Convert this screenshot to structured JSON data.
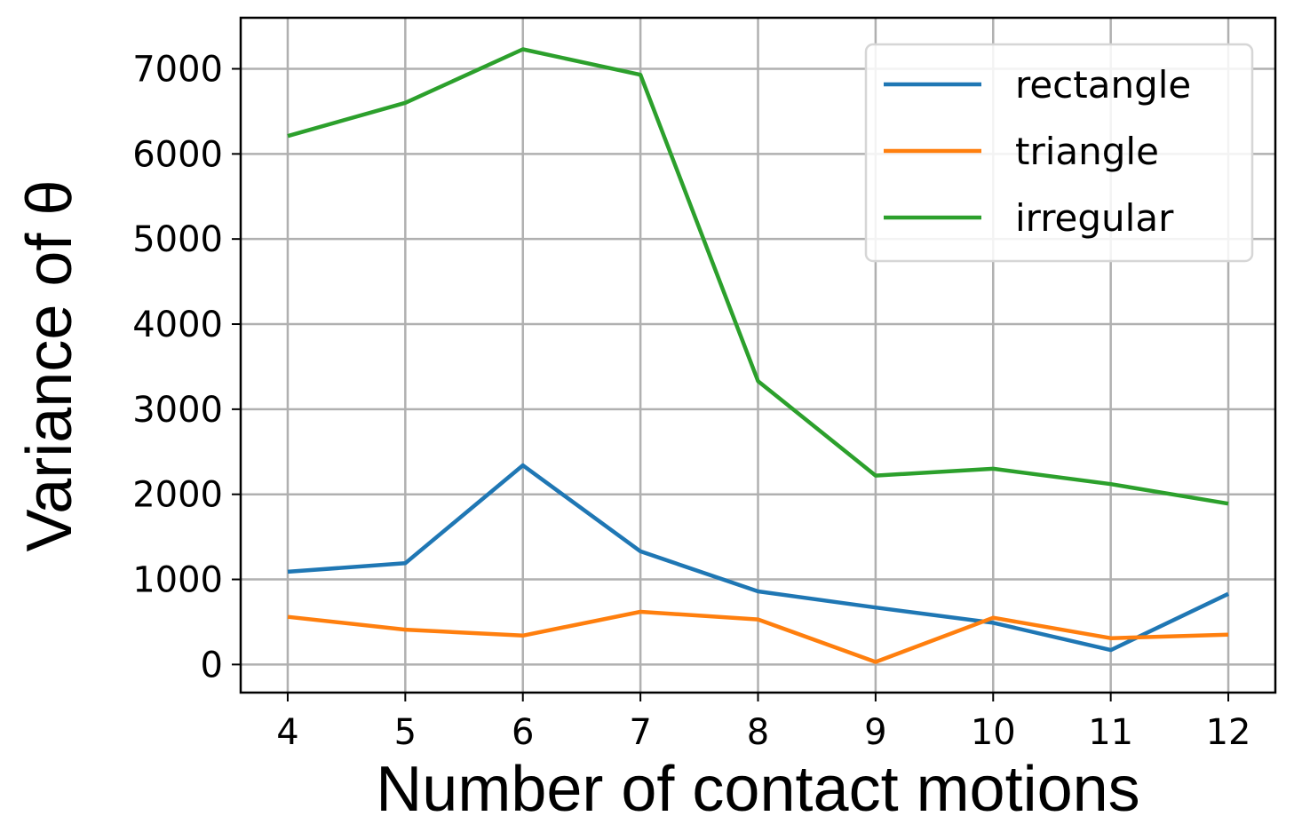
{
  "chart_data": {
    "type": "line",
    "x": [
      4,
      5,
      6,
      7,
      8,
      9,
      10,
      11,
      12
    ],
    "xticks": [
      "4",
      "5",
      "6",
      "7",
      "8",
      "9",
      "10",
      "11",
      "12"
    ],
    "yticks": [
      "0",
      "1000",
      "2000",
      "3000",
      "4000",
      "5000",
      "6000",
      "7000"
    ],
    "xlabel": "Number of contact motions",
    "ylabel": "Variance of θ",
    "xlim": [
      3.6,
      12.4
    ],
    "ylim": [
      -330,
      7600
    ],
    "grid": true,
    "legend_position": "top-right",
    "series": [
      {
        "name": "rectangle",
        "color": "#1f77b4",
        "values": [
          1090,
          1190,
          2340,
          1330,
          860,
          670,
          490,
          170,
          830
        ]
      },
      {
        "name": "triangle",
        "color": "#ff7f0e",
        "values": [
          560,
          410,
          340,
          620,
          530,
          30,
          550,
          310,
          350
        ]
      },
      {
        "name": "irregular",
        "color": "#2ca02c",
        "values": [
          6210,
          6600,
          7230,
          6930,
          3330,
          2220,
          2300,
          2120,
          1890
        ]
      }
    ]
  }
}
